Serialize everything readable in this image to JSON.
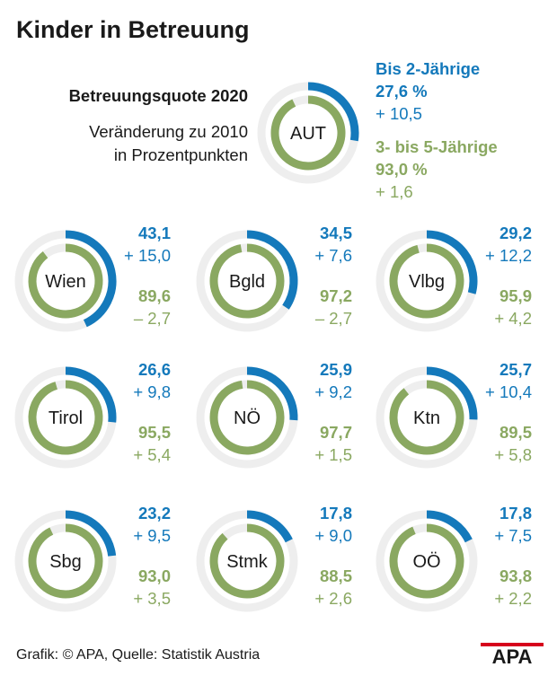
{
  "title": "Kinder in Betreuung",
  "subtitle_line1": "Betreuungsquote 2020",
  "subtitle_line2": "Veränderung zu 2010",
  "subtitle_line3": "in Prozentpunkten",
  "legend": {
    "under2_label": "Bis 2-Jährige",
    "age3to5_label": "3- bis 5-Jährige"
  },
  "colors": {
    "under2": "#1479bb",
    "age3to5": "#8aa861",
    "track": "#eeeeee"
  },
  "source": "Grafik: © APA, Quelle: Statistik Austria",
  "logo_text": "APA",
  "chart_data": {
    "type": "donut",
    "series": [
      {
        "name": "Bis 2-Jährige",
        "field": "u2"
      },
      {
        "name": "3- bis 5-Jährige",
        "field": "k"
      }
    ],
    "items": [
      {
        "label": "AUT",
        "u2": 27.6,
        "u2_label": "27,6 %",
        "u2_change": "+ 10,5",
        "k": 93.0,
        "k_label": "93,0 %",
        "k_change": "+ 1,6"
      },
      {
        "label": "Wien",
        "u2": 43.1,
        "u2_label": "43,1",
        "u2_change": "+ 15,0",
        "k": 89.6,
        "k_label": "89,6",
        "k_change": "– 2,7"
      },
      {
        "label": "Bgld",
        "u2": 34.5,
        "u2_label": "34,5",
        "u2_change": "+ 7,6",
        "k": 97.2,
        "k_label": "97,2",
        "k_change": "– 2,7"
      },
      {
        "label": "Vlbg",
        "u2": 29.2,
        "u2_label": "29,2",
        "u2_change": "+ 12,2",
        "k": 95.9,
        "k_label": "95,9",
        "k_change": "+ 4,2"
      },
      {
        "label": "Tirol",
        "u2": 26.6,
        "u2_label": "26,6",
        "u2_change": "+ 9,8",
        "k": 95.5,
        "k_label": "95,5",
        "k_change": "+ 5,4"
      },
      {
        "label": "NÖ",
        "u2": 25.9,
        "u2_label": "25,9",
        "u2_change": "+ 9,2",
        "k": 97.7,
        "k_label": "97,7",
        "k_change": "+ 1,5"
      },
      {
        "label": "Ktn",
        "u2": 25.7,
        "u2_label": "25,7",
        "u2_change": "+ 10,4",
        "k": 89.5,
        "k_label": "89,5",
        "k_change": "+ 5,8"
      },
      {
        "label": "Sbg",
        "u2": 23.2,
        "u2_label": "23,2",
        "u2_change": "+ 9,5",
        "k": 93.0,
        "k_label": "93,0",
        "k_change": "+ 3,5"
      },
      {
        "label": "Stmk",
        "u2": 17.8,
        "u2_label": "17,8",
        "u2_change": "+ 9,0",
        "k": 88.5,
        "k_label": "88,5",
        "k_change": "+ 2,6"
      },
      {
        "label": "OÖ",
        "u2": 17.8,
        "u2_label": "17,8",
        "u2_change": "+ 7,5",
        "k": 93.8,
        "k_label": "93,8",
        "k_change": "+ 2,2"
      }
    ]
  }
}
